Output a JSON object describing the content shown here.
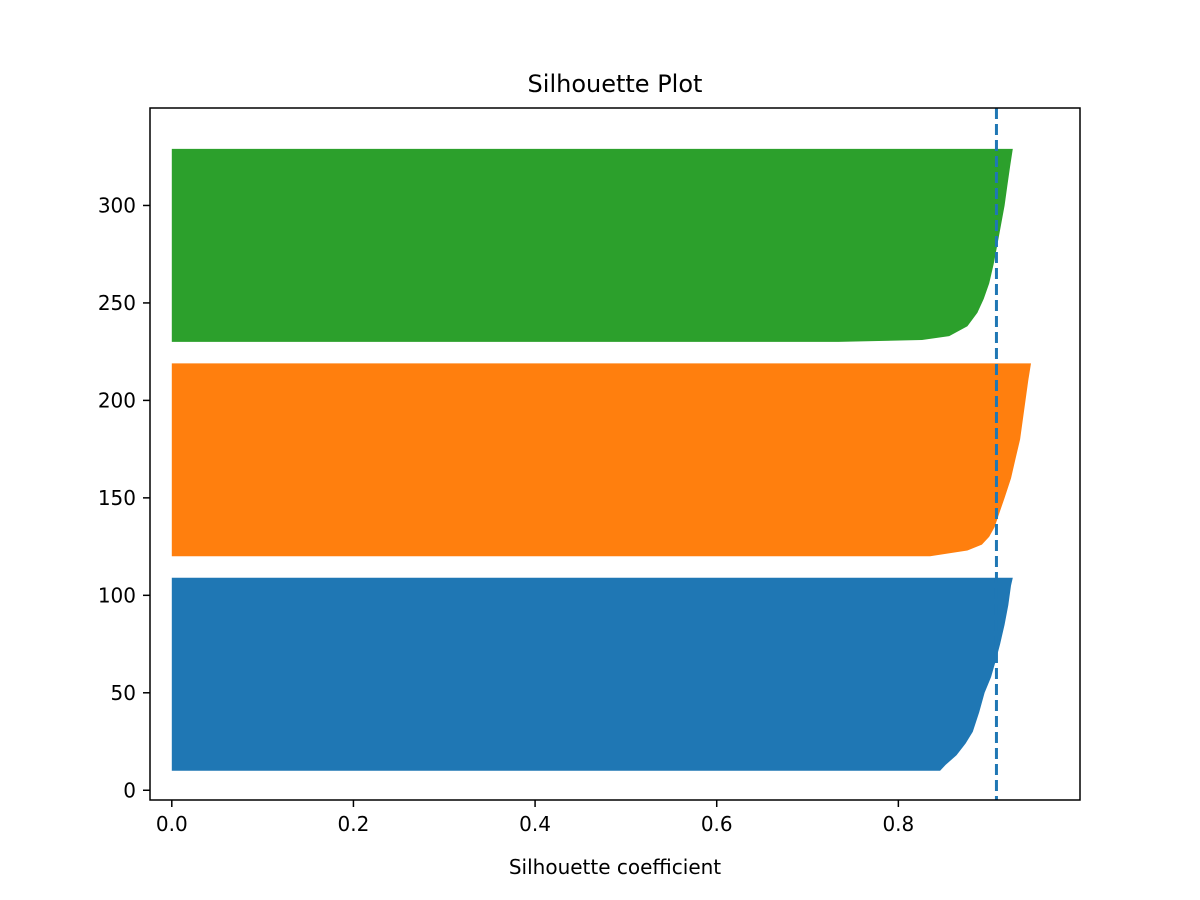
{
  "chart_data": {
    "type": "area",
    "title": "Silhouette Plot",
    "xlabel": "Silhouette coefficient",
    "ylabel": "",
    "xlim": [
      -0.024,
      1.0
    ],
    "ylim": [
      -5,
      350
    ],
    "xticks": [
      0.0,
      0.2,
      0.4,
      0.6,
      0.8
    ],
    "xtick_labels": [
      "0.0",
      "0.2",
      "0.4",
      "0.6",
      "0.8"
    ],
    "yticks": [
      0,
      50,
      100,
      150,
      200,
      250,
      300
    ],
    "ytick_labels": [
      "0",
      "50",
      "100",
      "150",
      "200",
      "250",
      "300"
    ],
    "grid": false,
    "legend": false,
    "average_silhouette": 0.908,
    "average_line_color": "#1f77b4",
    "series": [
      {
        "color": "#1f77b4",
        "y_start": 10,
        "y_end": 109,
        "profile": [
          [
            10,
            0.846
          ],
          [
            13,
            0.852
          ],
          [
            18,
            0.864
          ],
          [
            24,
            0.874
          ],
          [
            30,
            0.882
          ],
          [
            40,
            0.889
          ],
          [
            50,
            0.895
          ],
          [
            58,
            0.902
          ],
          [
            66,
            0.907
          ],
          [
            75,
            0.912
          ],
          [
            85,
            0.917
          ],
          [
            95,
            0.921
          ],
          [
            105,
            0.924
          ],
          [
            109,
            0.926
          ]
        ]
      },
      {
        "color": "#ff7f0e",
        "y_start": 120,
        "y_end": 219,
        "profile": [
          [
            120,
            0.835
          ],
          [
            123,
            0.876
          ],
          [
            126,
            0.892
          ],
          [
            130,
            0.9
          ],
          [
            135,
            0.906
          ],
          [
            142,
            0.911
          ],
          [
            150,
            0.917
          ],
          [
            160,
            0.924
          ],
          [
            170,
            0.929
          ],
          [
            180,
            0.934
          ],
          [
            190,
            0.937
          ],
          [
            200,
            0.94
          ],
          [
            210,
            0.943
          ],
          [
            219,
            0.946
          ]
        ]
      },
      {
        "color": "#2ca02c",
        "y_start": 230,
        "y_end": 329,
        "profile": [
          [
            230,
            0.734
          ],
          [
            231,
            0.826
          ],
          [
            233,
            0.856
          ],
          [
            238,
            0.876
          ],
          [
            245,
            0.887
          ],
          [
            252,
            0.894
          ],
          [
            260,
            0.9
          ],
          [
            270,
            0.905
          ],
          [
            280,
            0.909
          ],
          [
            290,
            0.913
          ],
          [
            300,
            0.917
          ],
          [
            310,
            0.92
          ],
          [
            320,
            0.923
          ],
          [
            329,
            0.926
          ]
        ]
      }
    ]
  }
}
